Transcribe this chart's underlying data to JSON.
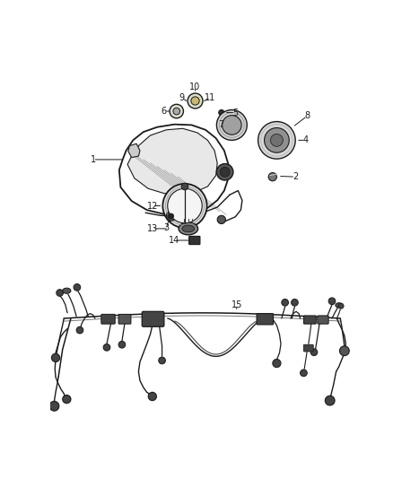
{
  "background_color": "#ffffff",
  "fig_width": 4.38,
  "fig_height": 5.33,
  "dpi": 100,
  "line_color": "#1a1a1a",
  "callout_fontsize": 7.0
}
